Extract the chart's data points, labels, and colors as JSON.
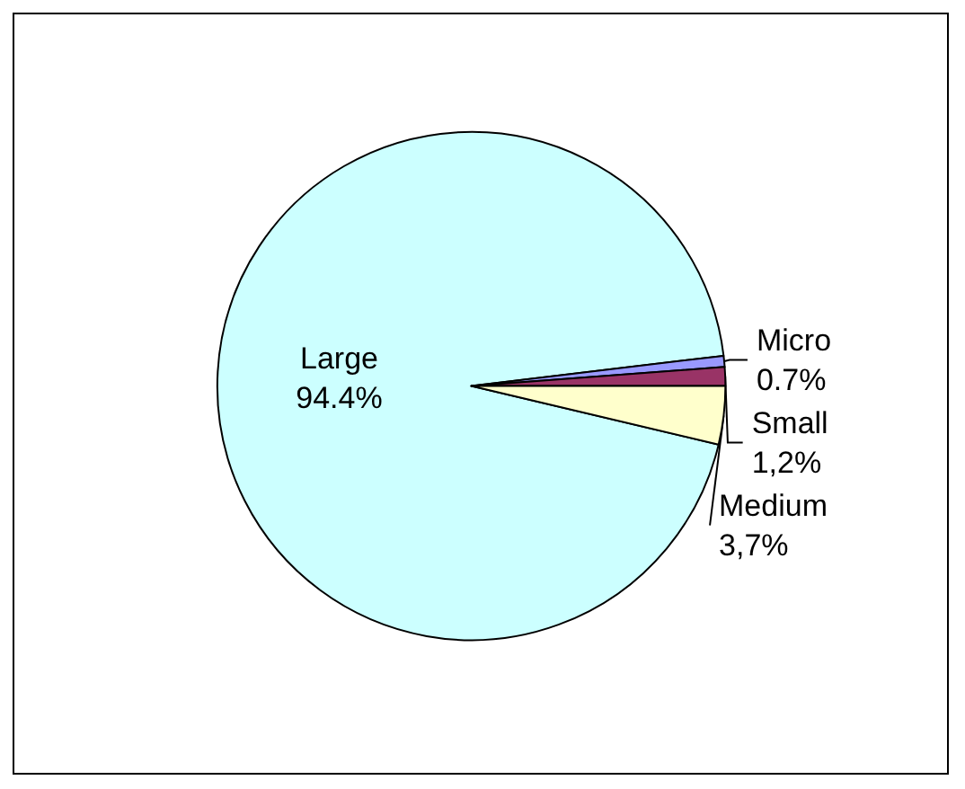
{
  "chart_data": {
    "type": "pie",
    "categories": [
      "Large",
      "Micro",
      "Small",
      "Medium"
    ],
    "values": [
      94.4,
      0.7,
      1.2,
      3.7
    ],
    "value_labels": [
      "94.4%",
      "0.7%",
      "1,2%",
      "3,7%"
    ],
    "colors": [
      "#ccffff",
      "#9999ff",
      "#993366",
      "#ffffcc"
    ],
    "legend": false
  }
}
